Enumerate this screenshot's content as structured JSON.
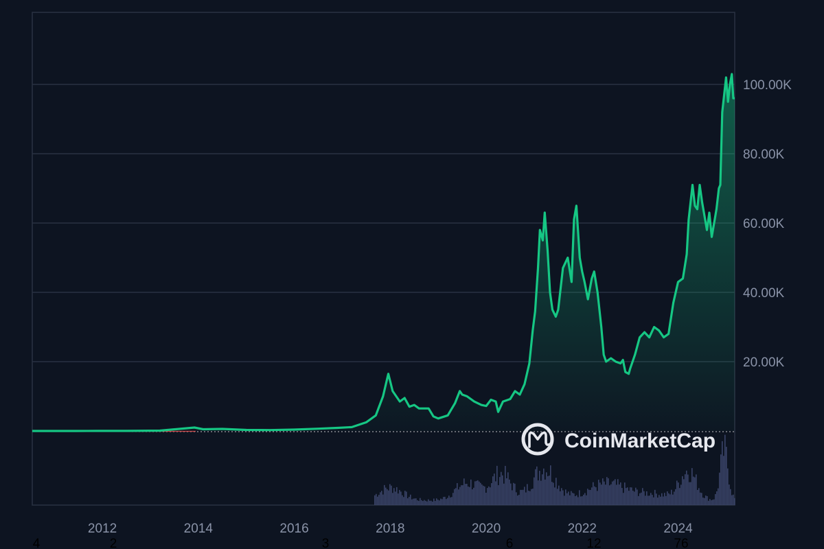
{
  "watermark": {
    "label": "CoinMarketCap",
    "icon": "coinmarketcap-logo-icon"
  },
  "colors": {
    "background": "#0d1421",
    "line": "#16c784",
    "grid": "#2a3242",
    "volume": "#3a4468",
    "baseline": "#e04a4a"
  },
  "stray_labels": [
    "4",
    "2",
    "3",
    "6",
    "12",
    "76"
  ],
  "chart_data": {
    "type": "area",
    "title": "",
    "xlabel": "",
    "ylabel": "",
    "x_ticks": [
      "2012",
      "2014",
      "2016",
      "2018",
      "2020",
      "2022",
      "2024"
    ],
    "y_ticks": [
      {
        "value": 20000,
        "label": "20.00K"
      },
      {
        "value": 40000,
        "label": "40.00K"
      },
      {
        "value": 60000,
        "label": "60.00K"
      },
      {
        "value": 80000,
        "label": "80.00K"
      },
      {
        "value": 100000,
        "label": "100.00K"
      }
    ],
    "ylim": [
      0,
      120000
    ],
    "xlim": [
      2010.54,
      2025.18
    ],
    "grid": true,
    "series": [
      {
        "x": [
          2010.54,
          2011.45,
          2011.9,
          2012.5,
          2013.2,
          2013.92,
          2014.1,
          2014.5,
          2015.0,
          2015.5,
          2016.0,
          2016.5,
          2016.9,
          2017.2,
          2017.5,
          2017.7,
          2017.85,
          2017.96,
          2018.05,
          2018.2,
          2018.3,
          2018.4,
          2018.5,
          2018.6,
          2018.8,
          2018.9,
          2019.0,
          2019.2,
          2019.35,
          2019.45,
          2019.5,
          2019.6,
          2019.75,
          2019.9,
          2020.0,
          2020.1,
          2020.2,
          2020.25,
          2020.35,
          2020.5,
          2020.6,
          2020.7,
          2020.8,
          2020.9,
          2020.97,
          2021.02,
          2021.08,
          2021.12,
          2021.18,
          2021.22,
          2021.28,
          2021.33,
          2021.38,
          2021.45,
          2021.5,
          2021.6,
          2021.7,
          2021.78,
          2021.83,
          2021.88,
          2021.95,
          2022.0,
          2022.05,
          2022.12,
          2022.2,
          2022.25,
          2022.32,
          2022.4,
          2022.45,
          2022.5,
          2022.6,
          2022.7,
          2022.8,
          2022.85,
          2022.9,
          2022.97,
          2023.0,
          2023.1,
          2023.2,
          2023.3,
          2023.4,
          2023.5,
          2023.6,
          2023.7,
          2023.8,
          2023.9,
          2024.0,
          2024.1,
          2024.18,
          2024.22,
          2024.3,
          2024.35,
          2024.4,
          2024.45,
          2024.5,
          2024.55,
          2024.6,
          2024.65,
          2024.7,
          2024.75,
          2024.8,
          2024.85,
          2024.88,
          2024.92,
          2024.96,
          2025.0,
          2025.04,
          2025.08,
          2025.12,
          2025.15,
          2025.18
        ],
        "y": [
          0,
          5,
          10,
          10,
          100,
          1000,
          500,
          600,
          300,
          250,
          400,
          650,
          900,
          1100,
          2500,
          4500,
          10000,
          16500,
          11500,
          8500,
          9500,
          7000,
          7500,
          6500,
          6500,
          4200,
          3600,
          4500,
          8000,
          11500,
          10500,
          10000,
          8500,
          7500,
          7200,
          9000,
          8500,
          5500,
          8500,
          9200,
          11500,
          10500,
          13500,
          19500,
          29000,
          34500,
          47000,
          58000,
          55000,
          63000,
          52000,
          40000,
          35000,
          33000,
          35000,
          47000,
          50000,
          43000,
          61000,
          65000,
          50000,
          46000,
          43000,
          38000,
          44000,
          46000,
          40000,
          30000,
          22000,
          20000,
          21000,
          20000,
          19500,
          20500,
          17000,
          16500,
          18000,
          22000,
          27000,
          28500,
          27000,
          30000,
          29000,
          27000,
          28000,
          37000,
          43000,
          44000,
          51000,
          61000,
          71000,
          65000,
          64000,
          71000,
          66000,
          62000,
          58000,
          63000,
          56000,
          60000,
          64000,
          70000,
          71000,
          92000,
          97000,
          102000,
          95000,
          100000,
          103000,
          96000,
          96000
        ]
      }
    ]
  }
}
